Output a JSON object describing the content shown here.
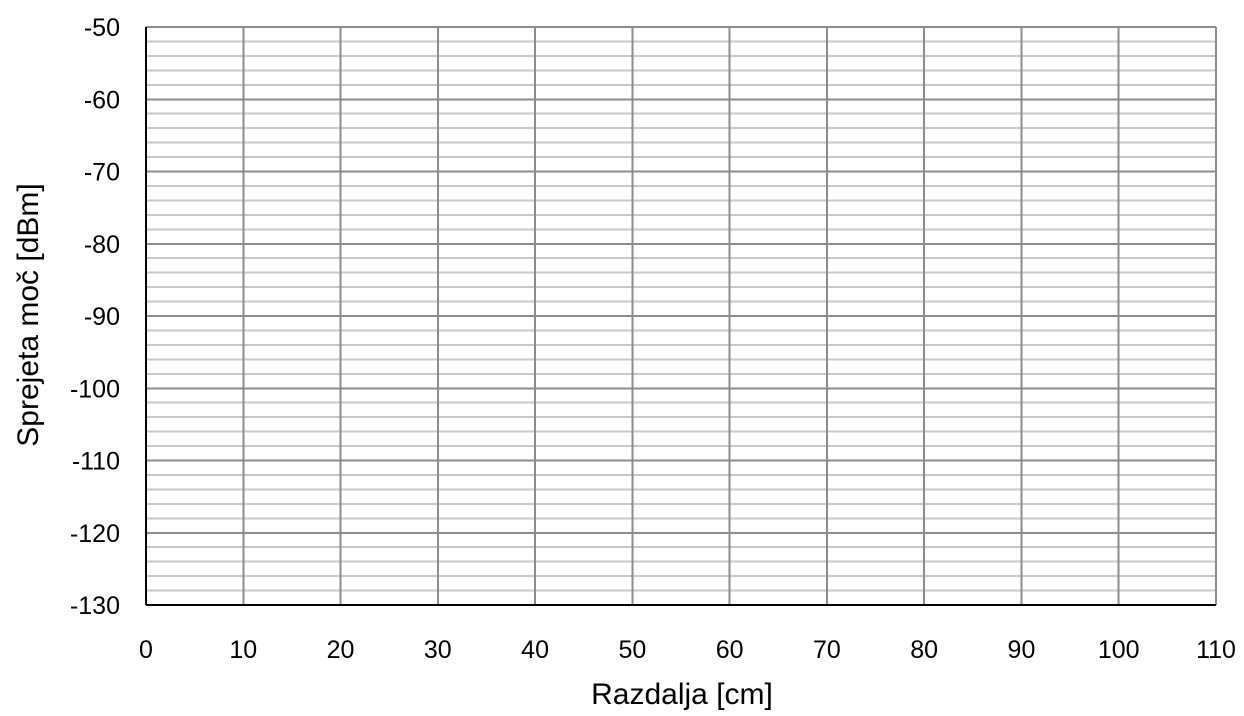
{
  "chart_data": {
    "type": "scatter",
    "title": "",
    "xlabel": "Razdalja [cm]",
    "ylabel": "Sprejeta moč [dBm]",
    "xlim": [
      0,
      110
    ],
    "ylim": [
      -130,
      -50
    ],
    "x_major_step": 10,
    "y_major_step": 10,
    "y_minor_step": 2,
    "x_ticks": [
      "0",
      "10",
      "20",
      "30",
      "40",
      "50",
      "60",
      "70",
      "80",
      "90",
      "100",
      "110"
    ],
    "y_ticks": [
      "-50",
      "-60",
      "-70",
      "-80",
      "-90",
      "-100",
      "-110",
      "-120",
      "-130"
    ],
    "grid": true,
    "minor_grid": true,
    "series": [],
    "colors": {
      "major_grid": "#8c8c8c",
      "minor_grid": "#c8c8c8",
      "axis": "#000000"
    }
  }
}
